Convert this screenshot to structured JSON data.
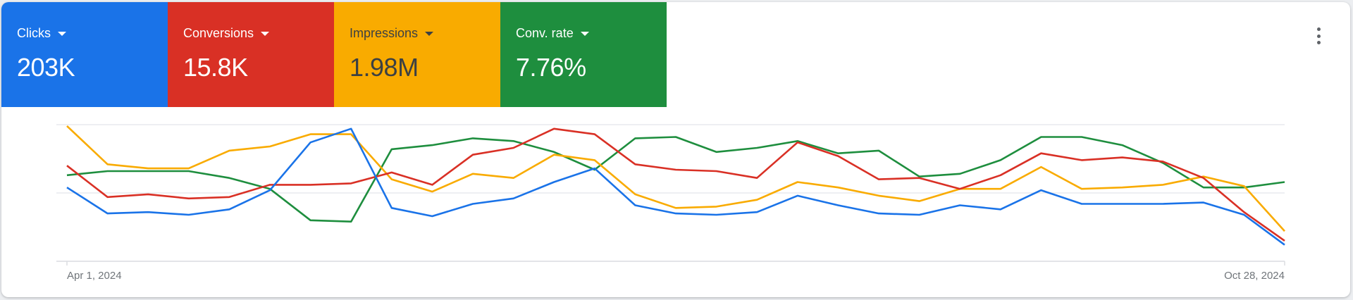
{
  "tiles": [
    {
      "label": "Clicks",
      "value": "203K",
      "bg": "#1a73e8",
      "fg": "#ffffff"
    },
    {
      "label": "Conversions",
      "value": "15.8K",
      "bg": "#d93025",
      "fg": "#ffffff"
    },
    {
      "label": "Impressions",
      "value": "1.98M",
      "bg": "#f9ab00",
      "fg": "#3c4043"
    },
    {
      "label": "Conv. rate",
      "value": "7.76%",
      "bg": "#1e8e3e",
      "fg": "#ffffff"
    }
  ],
  "menu": {
    "icon": "more-vert-icon"
  },
  "axis": {
    "start_label": "Apr 1, 2024",
    "end_label": "Oct 28, 2024"
  },
  "chart_data": {
    "type": "line",
    "title": "",
    "xlabel": "",
    "ylabel": "",
    "x_range_labels": [
      "Apr 1, 2024",
      "Oct 28, 2024"
    ],
    "x_points": 31,
    "grid": true,
    "note": "Values are relative plot heights (0 = baseline, 100 = top gridline); each series is independently scaled, axis values are not shown.",
    "series": [
      {
        "name": "Clicks",
        "color": "#1a73e8",
        "values": [
          54,
          35,
          36,
          34,
          38,
          52,
          87,
          97,
          39,
          33,
          42,
          46,
          58,
          68,
          41,
          35,
          34,
          36,
          48,
          41,
          35,
          34,
          41,
          38,
          52,
          42,
          42,
          42,
          43,
          34,
          12
        ]
      },
      {
        "name": "Conversions",
        "color": "#d93025",
        "values": [
          70,
          47,
          49,
          46,
          47,
          56,
          56,
          57,
          65,
          56,
          78,
          83,
          97,
          93,
          71,
          67,
          66,
          61,
          87,
          77,
          60,
          61,
          53,
          63,
          79,
          74,
          76,
          73,
          61,
          36,
          15
        ]
      },
      {
        "name": "Impressions",
        "color": "#f9ab00",
        "values": [
          99,
          71,
          68,
          68,
          81,
          84,
          93,
          93,
          60,
          51,
          64,
          61,
          78,
          74,
          49,
          39,
          40,
          45,
          58,
          54,
          48,
          44,
          53,
          53,
          69,
          53,
          54,
          56,
          62,
          55,
          22
        ]
      },
      {
        "name": "Conv. rate",
        "color": "#1e8e3e",
        "values": [
          63,
          66,
          66,
          66,
          61,
          53,
          30,
          29,
          82,
          85,
          90,
          88,
          80,
          67,
          90,
          91,
          80,
          83,
          88,
          79,
          81,
          62,
          64,
          74,
          91,
          91,
          85,
          72,
          54,
          54,
          58
        ]
      }
    ]
  }
}
